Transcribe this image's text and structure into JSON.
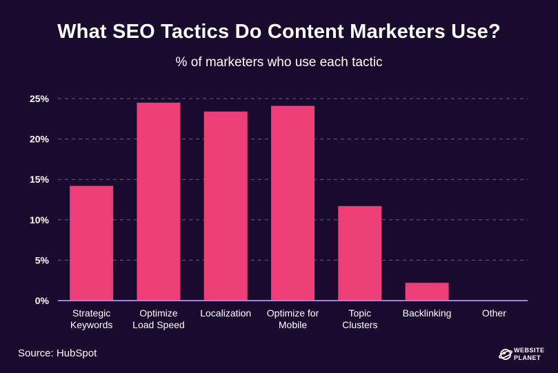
{
  "title": "What SEO Tactics Do Content Marketers Use?",
  "subtitle": "% of marketers who use each tactic",
  "source": "Source: HubSpot",
  "logo": {
    "line1": "WEBSITE",
    "line2": "PLANET"
  },
  "colors": {
    "background": "#1a0b2e",
    "bar": "#ee3e77",
    "grid": "#6b5a8e",
    "axis": "#9b87d4",
    "text": "#ffffff"
  },
  "chart_data": {
    "type": "bar",
    "categories": [
      [
        "Strategic",
        "Keywords"
      ],
      [
        "Optimize",
        "Load Speed"
      ],
      [
        "Localization"
      ],
      [
        "Optimize for",
        "Mobile"
      ],
      [
        "Topic",
        "Clusters"
      ],
      [
        "Backlinking"
      ],
      [
        "Other"
      ]
    ],
    "values": [
      14.2,
      24.5,
      23.4,
      24.1,
      11.7,
      2.2,
      0
    ],
    "ylim": [
      0,
      25
    ],
    "yticks": [
      0,
      5,
      10,
      15,
      20,
      25
    ],
    "ytick_labels": [
      "0%",
      "5%",
      "10%",
      "15%",
      "20%",
      "25%"
    ],
    "grid": true
  }
}
